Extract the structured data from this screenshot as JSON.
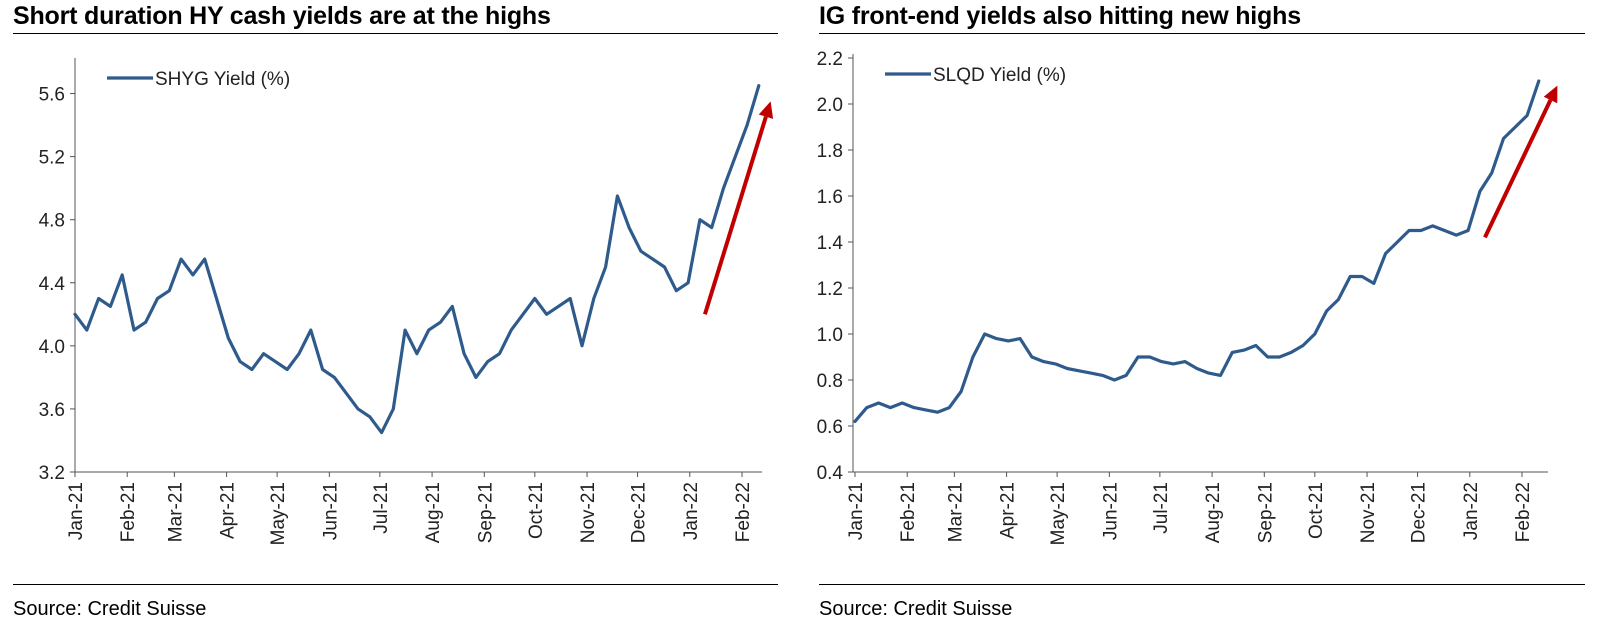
{
  "chart_data": [
    {
      "type": "line",
      "title": "Short duration HY cash yields are at the highs",
      "source": "Source: Credit Suisse",
      "series": [
        {
          "name": "SHYG Yield (%)",
          "color": "#2f5b8c",
          "x": [
            "2021-01-01",
            "2021-01-08",
            "2021-01-15",
            "2021-01-22",
            "2021-01-29",
            "2021-02-05",
            "2021-02-12",
            "2021-02-19",
            "2021-02-26",
            "2021-03-05",
            "2021-03-12",
            "2021-03-19",
            "2021-03-26",
            "2021-04-02",
            "2021-04-09",
            "2021-04-16",
            "2021-04-23",
            "2021-04-30",
            "2021-05-07",
            "2021-05-14",
            "2021-05-21",
            "2021-05-28",
            "2021-06-04",
            "2021-06-11",
            "2021-06-18",
            "2021-06-25",
            "2021-07-02",
            "2021-07-09",
            "2021-07-16",
            "2021-07-23",
            "2021-07-30",
            "2021-08-06",
            "2021-08-13",
            "2021-08-20",
            "2021-08-27",
            "2021-09-03",
            "2021-09-10",
            "2021-09-17",
            "2021-09-24",
            "2021-10-01",
            "2021-10-08",
            "2021-10-15",
            "2021-10-22",
            "2021-10-29",
            "2021-11-05",
            "2021-11-12",
            "2021-11-19",
            "2021-11-26",
            "2021-12-03",
            "2021-12-10",
            "2021-12-17",
            "2021-12-24",
            "2021-12-31",
            "2022-01-07",
            "2022-01-14",
            "2022-01-21",
            "2022-01-28",
            "2022-02-04",
            "2022-02-11"
          ],
          "values": [
            4.2,
            4.1,
            4.3,
            4.25,
            4.45,
            4.1,
            4.15,
            4.3,
            4.35,
            4.55,
            4.45,
            4.55,
            4.3,
            4.05,
            3.9,
            3.85,
            3.95,
            3.9,
            3.85,
            3.95,
            4.1,
            3.85,
            3.8,
            3.7,
            3.6,
            3.55,
            3.45,
            3.6,
            4.1,
            3.95,
            4.1,
            4.15,
            4.25,
            3.95,
            3.8,
            3.9,
            3.95,
            4.1,
            4.2,
            4.3,
            4.2,
            4.25,
            4.3,
            4.0,
            4.3,
            4.5,
            4.95,
            4.75,
            4.6,
            4.55,
            4.5,
            4.35,
            4.4,
            4.8,
            4.75,
            5.0,
            5.2,
            5.4,
            5.65
          ]
        }
      ],
      "xticks": [
        "Jan-21",
        "Feb-21",
        "Mar-21",
        "Apr-21",
        "May-21",
        "Jun-21",
        "Jul-21",
        "Aug-21",
        "Sep-21",
        "Oct-21",
        "Nov-21",
        "Dec-21",
        "Jan-22",
        "Feb-22"
      ],
      "ylim": [
        3.2,
        5.8
      ],
      "yticks": [
        3.2,
        3.6,
        4.0,
        4.4,
        4.8,
        5.2,
        5.6
      ],
      "ytick_decimals": 1,
      "grid": false,
      "legend": "top-left",
      "annotation": {
        "type": "arrow",
        "color": "#c00000",
        "from": [
          "2022-01-10",
          4.2
        ],
        "to": [
          "2022-02-18",
          5.55
        ]
      }
    },
    {
      "type": "line",
      "title": "IG front-end yields also hitting new highs",
      "source": "Source: Credit Suisse",
      "series": [
        {
          "name": "SLQD Yield (%)",
          "color": "#2f5b8c",
          "x": [
            "2021-01-01",
            "2021-01-08",
            "2021-01-15",
            "2021-01-22",
            "2021-01-29",
            "2021-02-05",
            "2021-02-12",
            "2021-02-19",
            "2021-02-26",
            "2021-03-05",
            "2021-03-12",
            "2021-03-19",
            "2021-03-26",
            "2021-04-02",
            "2021-04-09",
            "2021-04-16",
            "2021-04-23",
            "2021-04-30",
            "2021-05-07",
            "2021-05-14",
            "2021-05-21",
            "2021-05-28",
            "2021-06-04",
            "2021-06-11",
            "2021-06-18",
            "2021-06-25",
            "2021-07-02",
            "2021-07-09",
            "2021-07-16",
            "2021-07-23",
            "2021-07-30",
            "2021-08-06",
            "2021-08-13",
            "2021-08-20",
            "2021-08-27",
            "2021-09-03",
            "2021-09-10",
            "2021-09-17",
            "2021-09-24",
            "2021-10-01",
            "2021-10-08",
            "2021-10-15",
            "2021-10-22",
            "2021-10-29",
            "2021-11-05",
            "2021-11-12",
            "2021-11-19",
            "2021-11-26",
            "2021-12-03",
            "2021-12-10",
            "2021-12-17",
            "2021-12-24",
            "2021-12-31",
            "2022-01-07",
            "2022-01-14",
            "2022-01-21",
            "2022-01-28",
            "2022-02-04",
            "2022-02-11"
          ],
          "values": [
            0.62,
            0.68,
            0.7,
            0.68,
            0.7,
            0.68,
            0.67,
            0.66,
            0.68,
            0.75,
            0.9,
            1.0,
            0.98,
            0.97,
            0.98,
            0.9,
            0.88,
            0.87,
            0.85,
            0.84,
            0.83,
            0.82,
            0.8,
            0.82,
            0.9,
            0.9,
            0.88,
            0.87,
            0.88,
            0.85,
            0.83,
            0.82,
            0.92,
            0.93,
            0.95,
            0.9,
            0.9,
            0.92,
            0.95,
            1.0,
            1.1,
            1.15,
            1.25,
            1.25,
            1.22,
            1.35,
            1.4,
            1.45,
            1.45,
            1.47,
            1.45,
            1.43,
            1.45,
            1.62,
            1.7,
            1.85,
            1.9,
            1.95,
            2.1
          ]
        }
      ],
      "xticks": [
        "Jan-21",
        "Feb-21",
        "Mar-21",
        "Apr-21",
        "May-21",
        "Jun-21",
        "Jul-21",
        "Aug-21",
        "Sep-21",
        "Oct-21",
        "Nov-21",
        "Dec-21",
        "Jan-22",
        "Feb-22"
      ],
      "ylim": [
        0.4,
        2.2
      ],
      "yticks": [
        0.4,
        0.6,
        0.8,
        1.0,
        1.2,
        1.4,
        1.6,
        1.8,
        2.0,
        2.2
      ],
      "ytick_decimals": 1,
      "grid": false,
      "legend": "top-left",
      "annotation": {
        "type": "arrow",
        "color": "#c00000",
        "from": [
          "2022-01-10",
          1.42
        ],
        "to": [
          "2022-02-22",
          2.08
        ]
      }
    }
  ]
}
